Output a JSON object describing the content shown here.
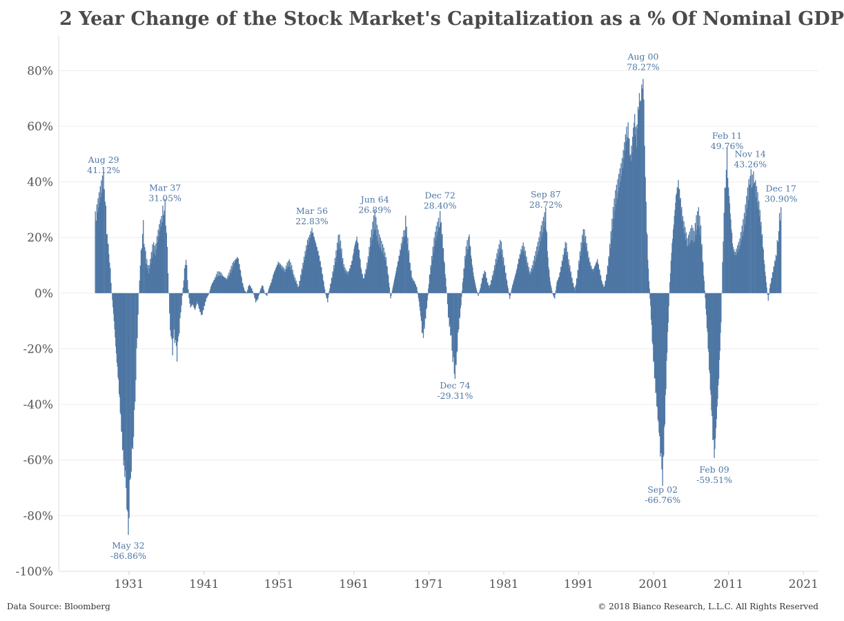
{
  "title": "2 Year Change of the Stock Market's Capitalization as a % Of Nominal GDP",
  "footer": {
    "source": "Data Source: Bloomberg",
    "copyright": "© 2018 Bianco Research, L.L.C. All Rights Reserved"
  },
  "colors": {
    "bar": "#4e77a4",
    "annotation": "#4e77a4",
    "grid": "#ececec",
    "zero_line": "#c8c8c8"
  },
  "chart_data": {
    "type": "bar",
    "title": "2 Year Change of the Stock Market's Capitalization as a % Of Nominal GDP",
    "xlabel": "",
    "ylabel": "",
    "xlim": [
      1921.6,
      2023.0
    ],
    "ylim": [
      -100,
      90
    ],
    "xticks": [
      1931,
      1941,
      1951,
      1961,
      1971,
      1981,
      1991,
      2001,
      2011,
      2021
    ],
    "yticks": [
      -100,
      -80,
      -60,
      -40,
      -20,
      0,
      20,
      40,
      60,
      80
    ],
    "grid": true,
    "value_unit": "%",
    "points": [
      [
        1926.5,
        28
      ],
      [
        1926.7,
        30
      ],
      [
        1927.0,
        34
      ],
      [
        1927.3,
        38
      ],
      [
        1927.6,
        41.12
      ],
      [
        1927.8,
        35
      ],
      [
        1928.0,
        22
      ],
      [
        1928.3,
        15
      ],
      [
        1928.5,
        8
      ],
      [
        1928.7,
        0
      ],
      [
        1929.0,
        -10
      ],
      [
        1929.3,
        -22
      ],
      [
        1929.6,
        -32
      ],
      [
        1929.9,
        -45
      ],
      [
        1930.2,
        -58
      ],
      [
        1930.5,
        -66
      ],
      [
        1930.7,
        -75
      ],
      [
        1930.9,
        -86.86
      ],
      [
        1931.1,
        -70
      ],
      [
        1931.3,
        -62
      ],
      [
        1931.5,
        -55
      ],
      [
        1931.7,
        -45
      ],
      [
        1931.9,
        -30
      ],
      [
        1932.1,
        -15
      ],
      [
        1932.3,
        0
      ],
      [
        1932.5,
        10
      ],
      [
        1932.7,
        18
      ],
      [
        1932.9,
        24
      ],
      [
        1933.1,
        16
      ],
      [
        1933.3,
        12
      ],
      [
        1933.6,
        8
      ],
      [
        1933.9,
        12
      ],
      [
        1934.2,
        17
      ],
      [
        1934.5,
        15
      ],
      [
        1934.8,
        20
      ],
      [
        1935.1,
        24
      ],
      [
        1935.4,
        27
      ],
      [
        1935.6,
        30
      ],
      [
        1935.8,
        31.05
      ],
      [
        1936.0,
        22
      ],
      [
        1936.2,
        8
      ],
      [
        1936.4,
        -8
      ],
      [
        1936.6,
        -16
      ],
      [
        1936.8,
        -20
      ],
      [
        1937.0,
        -14
      ],
      [
        1937.2,
        -18
      ],
      [
        1937.4,
        -22
      ],
      [
        1937.6,
        -16
      ],
      [
        1937.8,
        -10
      ],
      [
        1938.0,
        -4
      ],
      [
        1938.2,
        2
      ],
      [
        1938.4,
        8
      ],
      [
        1938.6,
        13
      ],
      [
        1938.8,
        5
      ],
      [
        1939.0,
        -2
      ],
      [
        1939.2,
        -5
      ],
      [
        1939.5,
        -4
      ],
      [
        1939.8,
        -6
      ],
      [
        1940.1,
        -3
      ],
      [
        1940.4,
        -6
      ],
      [
        1940.7,
        -8
      ],
      [
        1941.0,
        -5
      ],
      [
        1941.3,
        -2
      ],
      [
        1941.7,
        0
      ],
      [
        1942.0,
        3
      ],
      [
        1942.4,
        5
      ],
      [
        1942.8,
        7
      ],
      [
        1943.2,
        7
      ],
      [
        1943.6,
        6
      ],
      [
        1944.0,
        5
      ],
      [
        1944.4,
        7
      ],
      [
        1944.8,
        10
      ],
      [
        1945.2,
        12
      ],
      [
        1945.5,
        13
      ],
      [
        1945.8,
        9
      ],
      [
        1946.1,
        4
      ],
      [
        1946.4,
        1
      ],
      [
        1946.7,
        0
      ],
      [
        1947.0,
        3
      ],
      [
        1947.3,
        2
      ],
      [
        1947.6,
        0
      ],
      [
        1947.9,
        -3
      ],
      [
        1948.2,
        -2
      ],
      [
        1948.5,
        1
      ],
      [
        1948.8,
        3
      ],
      [
        1949.1,
        0
      ],
      [
        1949.4,
        -1
      ],
      [
        1949.7,
        2
      ],
      [
        1950.0,
        4
      ],
      [
        1950.3,
        7
      ],
      [
        1950.6,
        9
      ],
      [
        1950.9,
        11
      ],
      [
        1951.2,
        10
      ],
      [
        1951.5,
        9
      ],
      [
        1951.8,
        8
      ],
      [
        1952.1,
        10
      ],
      [
        1952.4,
        11
      ],
      [
        1952.7,
        9
      ],
      [
        1953.0,
        6
      ],
      [
        1953.3,
        4
      ],
      [
        1953.6,
        2
      ],
      [
        1953.9,
        6
      ],
      [
        1954.2,
        10
      ],
      [
        1954.5,
        14
      ],
      [
        1954.8,
        18
      ],
      [
        1955.1,
        20
      ],
      [
        1955.4,
        22.83
      ],
      [
        1955.7,
        20
      ],
      [
        1956.0,
        17
      ],
      [
        1956.3,
        14
      ],
      [
        1956.6,
        10
      ],
      [
        1956.9,
        5
      ],
      [
        1957.2,
        0
      ],
      [
        1957.5,
        -3
      ],
      [
        1957.8,
        2
      ],
      [
        1958.1,
        6
      ],
      [
        1958.4,
        10
      ],
      [
        1958.7,
        15
      ],
      [
        1959.0,
        20
      ],
      [
        1959.3,
        16
      ],
      [
        1959.6,
        10
      ],
      [
        1959.9,
        8
      ],
      [
        1960.2,
        7
      ],
      [
        1960.5,
        9
      ],
      [
        1960.8,
        12
      ],
      [
        1961.1,
        17
      ],
      [
        1961.4,
        20
      ],
      [
        1961.7,
        15
      ],
      [
        1962.0,
        8
      ],
      [
        1962.3,
        5
      ],
      [
        1962.6,
        8
      ],
      [
        1962.9,
        12
      ],
      [
        1963.2,
        18
      ],
      [
        1963.5,
        23
      ],
      [
        1963.8,
        26.89
      ],
      [
        1964.1,
        22
      ],
      [
        1964.4,
        19
      ],
      [
        1964.7,
        17
      ],
      [
        1965.0,
        15
      ],
      [
        1965.3,
        12
      ],
      [
        1965.6,
        6
      ],
      [
        1965.9,
        -2
      ],
      [
        1966.2,
        2
      ],
      [
        1966.5,
        6
      ],
      [
        1966.8,
        10
      ],
      [
        1967.1,
        14
      ],
      [
        1967.4,
        18
      ],
      [
        1967.7,
        22
      ],
      [
        1967.9,
        25
      ],
      [
        1968.2,
        18
      ],
      [
        1968.5,
        10
      ],
      [
        1968.8,
        5
      ],
      [
        1969.1,
        4
      ],
      [
        1969.4,
        2
      ],
      [
        1969.7,
        -3
      ],
      [
        1970.0,
        -10
      ],
      [
        1970.2,
        -16
      ],
      [
        1970.5,
        -10
      ],
      [
        1970.8,
        -3
      ],
      [
        1971.1,
        6
      ],
      [
        1971.4,
        12
      ],
      [
        1971.7,
        18
      ],
      [
        1972.0,
        22
      ],
      [
        1972.3,
        25
      ],
      [
        1972.5,
        28.4
      ],
      [
        1972.8,
        20
      ],
      [
        1973.1,
        10
      ],
      [
        1973.4,
        0
      ],
      [
        1973.6,
        -8
      ],
      [
        1973.9,
        -14
      ],
      [
        1974.1,
        -20
      ],
      [
        1974.3,
        -26
      ],
      [
        1974.5,
        -29.31
      ],
      [
        1974.8,
        -20
      ],
      [
        1975.0,
        -12
      ],
      [
        1975.3,
        -4
      ],
      [
        1975.6,
        6
      ],
      [
        1975.9,
        14
      ],
      [
        1976.2,
        18
      ],
      [
        1976.4,
        20
      ],
      [
        1976.7,
        12
      ],
      [
        1977.0,
        6
      ],
      [
        1977.3,
        2
      ],
      [
        1977.6,
        -1
      ],
      [
        1977.9,
        2
      ],
      [
        1978.2,
        6
      ],
      [
        1978.5,
        8
      ],
      [
        1978.8,
        4
      ],
      [
        1979.1,
        2
      ],
      [
        1979.4,
        5
      ],
      [
        1979.7,
        8
      ],
      [
        1980.0,
        12
      ],
      [
        1980.3,
        15
      ],
      [
        1980.6,
        18
      ],
      [
        1980.9,
        13
      ],
      [
        1981.2,
        8
      ],
      [
        1981.5,
        3
      ],
      [
        1981.8,
        -2
      ],
      [
        1982.1,
        2
      ],
      [
        1982.4,
        5
      ],
      [
        1982.7,
        8
      ],
      [
        1983.0,
        12
      ],
      [
        1983.3,
        15
      ],
      [
        1983.6,
        17
      ],
      [
        1983.9,
        14
      ],
      [
        1984.2,
        10
      ],
      [
        1984.5,
        7
      ],
      [
        1984.8,
        9
      ],
      [
        1985.1,
        12
      ],
      [
        1985.4,
        15
      ],
      [
        1985.7,
        18
      ],
      [
        1986.0,
        22
      ],
      [
        1986.3,
        25
      ],
      [
        1986.6,
        28.72
      ],
      [
        1986.9,
        12
      ],
      [
        1987.2,
        4
      ],
      [
        1987.5,
        0
      ],
      [
        1987.8,
        -2
      ],
      [
        1988.1,
        4
      ],
      [
        1988.4,
        6
      ],
      [
        1988.7,
        10
      ],
      [
        1989.0,
        14
      ],
      [
        1989.3,
        18
      ],
      [
        1989.6,
        12
      ],
      [
        1989.9,
        8
      ],
      [
        1990.2,
        4
      ],
      [
        1990.5,
        1
      ],
      [
        1990.8,
        6
      ],
      [
        1991.1,
        12
      ],
      [
        1991.4,
        18
      ],
      [
        1991.7,
        22
      ],
      [
        1992.0,
        18
      ],
      [
        1992.3,
        13
      ],
      [
        1992.6,
        10
      ],
      [
        1992.9,
        8
      ],
      [
        1993.2,
        10
      ],
      [
        1993.5,
        12
      ],
      [
        1993.8,
        8
      ],
      [
        1994.1,
        4
      ],
      [
        1994.4,
        2
      ],
      [
        1994.7,
        6
      ],
      [
        1995.0,
        12
      ],
      [
        1995.3,
        20
      ],
      [
        1995.6,
        28
      ],
      [
        1995.9,
        34
      ],
      [
        1996.2,
        38
      ],
      [
        1996.5,
        42
      ],
      [
        1996.8,
        46
      ],
      [
        1997.1,
        52
      ],
      [
        1997.4,
        58
      ],
      [
        1997.6,
        60
      ],
      [
        1997.9,
        48
      ],
      [
        1998.2,
        54
      ],
      [
        1998.4,
        64
      ],
      [
        1998.7,
        55
      ],
      [
        1999.0,
        68
      ],
      [
        1999.2,
        70
      ],
      [
        1999.4,
        72
      ],
      [
        1999.6,
        78.27
      ],
      [
        1999.8,
        55
      ],
      [
        2000.0,
        30
      ],
      [
        2000.3,
        8
      ],
      [
        2000.6,
        -5
      ],
      [
        2000.9,
        -20
      ],
      [
        2001.2,
        -32
      ],
      [
        2001.5,
        -42
      ],
      [
        2001.8,
        -52
      ],
      [
        2002.0,
        -60
      ],
      [
        2002.2,
        -66.76
      ],
      [
        2002.5,
        -45
      ],
      [
        2002.8,
        -20
      ],
      [
        2003.1,
        0
      ],
      [
        2003.4,
        15
      ],
      [
        2003.7,
        25
      ],
      [
        2004.0,
        35
      ],
      [
        2004.3,
        40
      ],
      [
        2004.6,
        33
      ],
      [
        2004.9,
        26
      ],
      [
        2005.2,
        22
      ],
      [
        2005.5,
        18
      ],
      [
        2005.8,
        20
      ],
      [
        2006.1,
        22
      ],
      [
        2006.4,
        20
      ],
      [
        2006.7,
        25
      ],
      [
        2007.0,
        28
      ],
      [
        2007.3,
        22
      ],
      [
        2007.6,
        10
      ],
      [
        2007.9,
        -2
      ],
      [
        2008.2,
        -15
      ],
      [
        2008.5,
        -30
      ],
      [
        2008.8,
        -45
      ],
      [
        2009.0,
        -55
      ],
      [
        2009.1,
        -59.51
      ],
      [
        2009.4,
        -45
      ],
      [
        2009.7,
        -30
      ],
      [
        2010.0,
        -10
      ],
      [
        2010.2,
        10
      ],
      [
        2010.4,
        30
      ],
      [
        2010.6,
        40
      ],
      [
        2010.8,
        49.76
      ],
      [
        2011.0,
        38
      ],
      [
        2011.3,
        26
      ],
      [
        2011.6,
        16
      ],
      [
        2011.9,
        14
      ],
      [
        2012.2,
        16
      ],
      [
        2012.5,
        18
      ],
      [
        2012.8,
        22
      ],
      [
        2013.1,
        26
      ],
      [
        2013.4,
        32
      ],
      [
        2013.7,
        38
      ],
      [
        2013.9,
        43.26
      ],
      [
        2014.1,
        40
      ],
      [
        2014.4,
        42
      ],
      [
        2014.6,
        38
      ],
      [
        2014.9,
        34
      ],
      [
        2015.2,
        28
      ],
      [
        2015.5,
        20
      ],
      [
        2015.8,
        10
      ],
      [
        2016.1,
        2
      ],
      [
        2016.3,
        -3
      ],
      [
        2016.5,
        2
      ],
      [
        2016.8,
        6
      ],
      [
        2017.1,
        10
      ],
      [
        2017.4,
        14
      ],
      [
        2017.6,
        20
      ],
      [
        2017.8,
        26
      ],
      [
        2018.0,
        30.9
      ]
    ],
    "annotations": [
      {
        "label": "Aug 29",
        "value_label": "41.12%",
        "x": 1927.6,
        "y": 41.12,
        "position": "above"
      },
      {
        "label": "May 32",
        "value_label": "-86.86%",
        "x": 1930.9,
        "y": -86.86,
        "position": "below"
      },
      {
        "label": "Mar 37",
        "value_label": "31.05%",
        "x": 1935.8,
        "y": 31.05,
        "position": "above"
      },
      {
        "label": "Mar 56",
        "value_label": "22.83%",
        "x": 1955.4,
        "y": 22.83,
        "position": "above"
      },
      {
        "label": "Jun 64",
        "value_label": "26.89%",
        "x": 1963.8,
        "y": 26.89,
        "position": "above"
      },
      {
        "label": "Dec 72",
        "value_label": "28.40%",
        "x": 1972.5,
        "y": 28.4,
        "position": "above"
      },
      {
        "label": "Dec 74",
        "value_label": "-29.31%",
        "x": 1974.5,
        "y": -29.31,
        "position": "below"
      },
      {
        "label": "Sep 87",
        "value_label": "28.72%",
        "x": 1986.6,
        "y": 28.72,
        "position": "above"
      },
      {
        "label": "Aug 00",
        "value_label": "78.27%",
        "x": 1999.6,
        "y": 78.27,
        "position": "above"
      },
      {
        "label": "Sep 02",
        "value_label": "-66.76%",
        "x": 2002.2,
        "y": -66.76,
        "position": "below"
      },
      {
        "label": "Feb 09",
        "value_label": "-59.51%",
        "x": 2009.1,
        "y": -59.51,
        "position": "below"
      },
      {
        "label": "Feb 11",
        "value_label": "49.76%",
        "x": 2010.8,
        "y": 49.76,
        "position": "above"
      },
      {
        "label": "Nov 14",
        "value_label": "43.26%",
        "x": 2013.9,
        "y": 43.26,
        "position": "above"
      },
      {
        "label": "Dec 17",
        "value_label": "30.90%",
        "x": 2018.0,
        "y": 30.9,
        "position": "above"
      }
    ]
  }
}
